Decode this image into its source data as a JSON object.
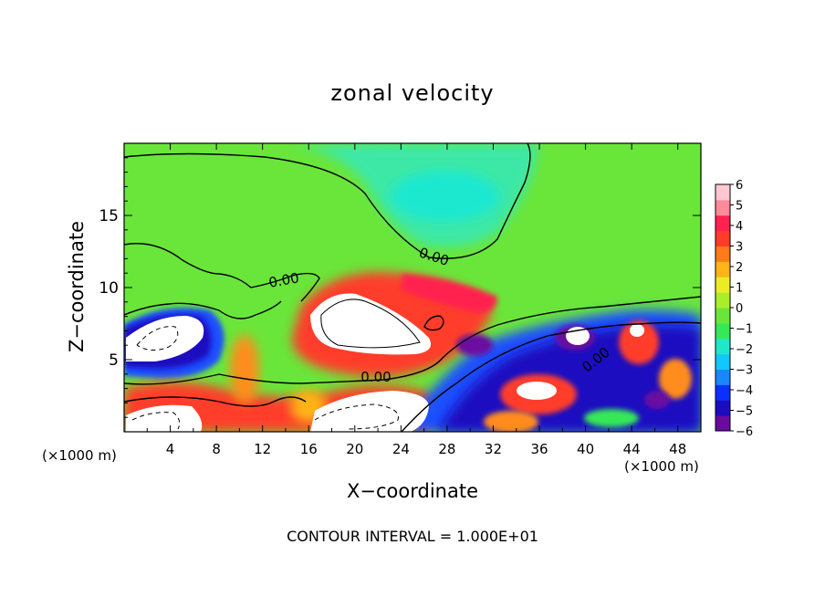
{
  "chart_data": {
    "type": "heatmap",
    "title": "zonal velocity",
    "xlabel": "X−coordinate",
    "ylabel": "Z−coordinate",
    "x_unit_left": "(×1000 m)",
    "x_unit_right": "(×1000 m)",
    "xlim": [
      0,
      50
    ],
    "ylim": [
      0,
      20
    ],
    "x_ticks": [
      "4",
      "8",
      "12",
      "16",
      "20",
      "24",
      "28",
      "32",
      "36",
      "40",
      "44",
      "48"
    ],
    "y_ticks": [
      "5",
      "10",
      "15"
    ],
    "colorbar": {
      "ticks": [
        "6",
        "5",
        "4",
        "3",
        "2",
        "1",
        "0",
        "−1",
        "−2",
        "−3",
        "−4",
        "−5",
        "−6"
      ],
      "range": [
        -6,
        6
      ],
      "colors": [
        "#6a0aa0",
        "#1c0cc0",
        "#0a30ff",
        "#1a86ff",
        "#12c6ff",
        "#1ee8c8",
        "#36e858",
        "#6ae63a",
        "#aaee2a",
        "#ecec24",
        "#ffb418",
        "#ff7a18",
        "#ff3c2a",
        "#ff2250",
        "#ff8a9a",
        "#ffc8d0"
      ]
    },
    "contour_labels": [
      "0.00",
      "0.00",
      "0.00",
      "0.00"
    ],
    "contour_interval_text": "CONTOUR INTERVAL = 1.000E+01"
  }
}
